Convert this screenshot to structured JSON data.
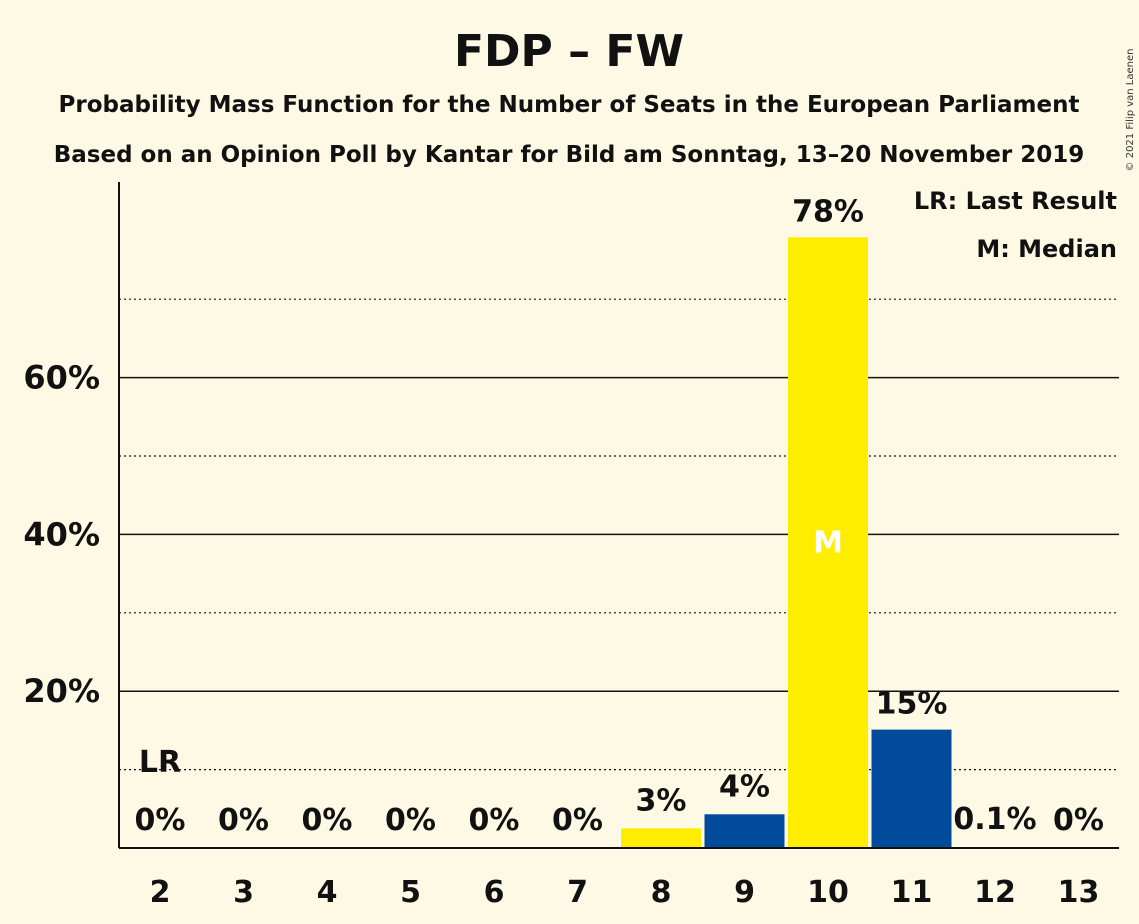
{
  "chart_data": {
    "type": "bar",
    "title": "FDP – FW",
    "subtitle_lines": [
      "Probability Mass Function for the Number of Seats in the European Parliament",
      "Based on an Opinion Poll by Kantar for Bild am Sonntag, 13–20 November 2019"
    ],
    "categories": [
      "2",
      "3",
      "4",
      "5",
      "6",
      "7",
      "8",
      "9",
      "10",
      "11",
      "12",
      "13"
    ],
    "values": [
      0,
      0,
      0,
      0,
      0,
      0,
      2.5,
      4.3,
      77.9,
      15.1,
      0.1,
      0
    ],
    "data_labels": [
      "0%",
      "0%",
      "0%",
      "0%",
      "0%",
      "0%",
      "3%",
      "4%",
      "78%",
      "15%",
      "0.1%",
      "0%"
    ],
    "bar_colors": [
      "#ffed00",
      "#004b9b",
      "#ffed00",
      "#004b9b",
      "#ffed00",
      "#004b9b",
      "#ffed00",
      "#004b9b",
      "#ffed00",
      "#004b9b",
      "#ffed00",
      "#004b9b"
    ],
    "ylim": [
      0,
      85
    ],
    "ytick_values": [
      20,
      40,
      60
    ],
    "ytick_labels": [
      "20%",
      "40%",
      "60%"
    ],
    "minor_gridlines": [
      10,
      30,
      50,
      70
    ],
    "last_result_category": "2",
    "last_result_marker": "LR",
    "median_category": "10",
    "median_marker": "M",
    "legend": [
      "LR: Last Result",
      "M: Median"
    ],
    "legend_position": "top-right"
  },
  "copyright": "© 2021 Filip van Laenen"
}
